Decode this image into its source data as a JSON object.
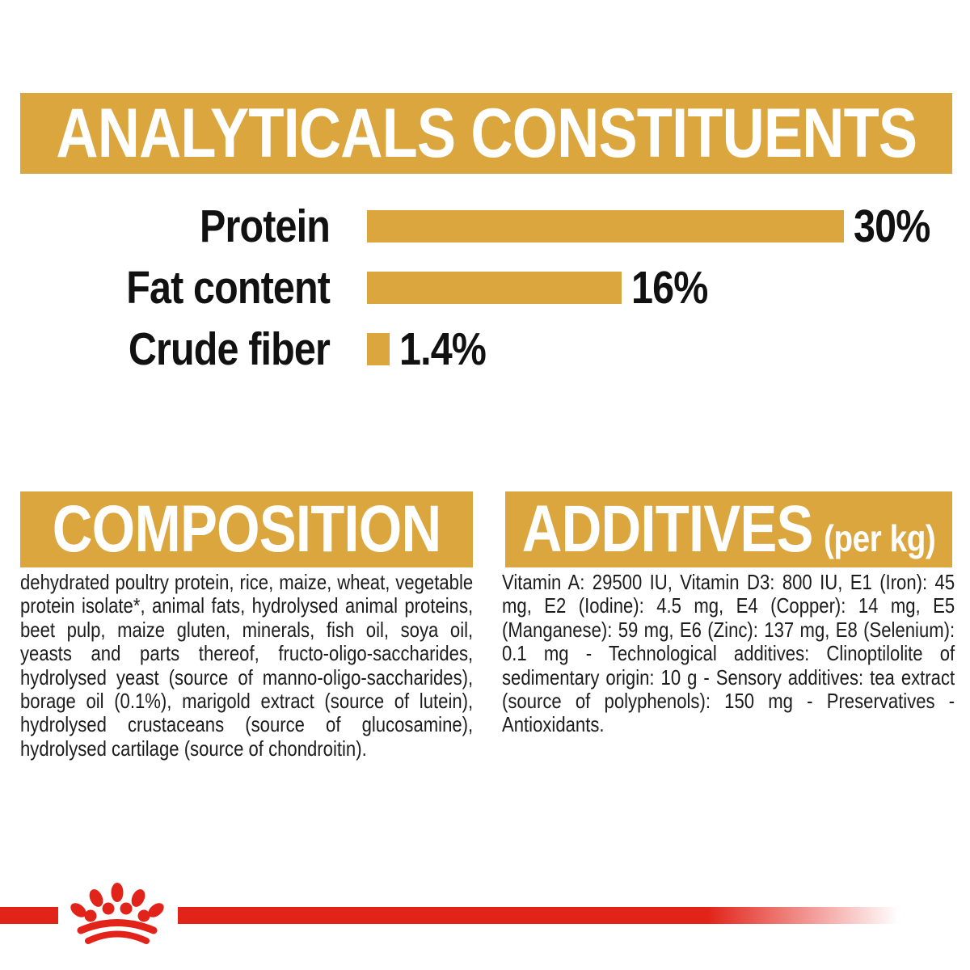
{
  "colors": {
    "gold": "#DBA63E",
    "red": "#E2231A",
    "text": "#1C1C1C",
    "band_text": "#FFFFFF"
  },
  "analyticals": {
    "title": "ANALYTICALS CONSTITUENTS"
  },
  "chart_data": {
    "type": "bar",
    "orientation": "horizontal",
    "title": "ANALYTICALS CONSTITUENTS",
    "categories": [
      "Protein",
      "Fat content",
      "Crude fiber"
    ],
    "values": [
      30,
      16,
      1.4
    ],
    "value_labels": [
      "30%",
      "16%",
      "1.4%"
    ],
    "unit": "%",
    "xlim": [
      0,
      30
    ],
    "bar_color": "#DBA63E",
    "grid": false,
    "legend": false
  },
  "composition": {
    "title": "COMPOSITION",
    "body": "dehydrated poultry protein, rice, maize, wheat, vegetable protein isolate*, animal fats, hydrolysed animal proteins, beet pulp, maize gluten, minerals, fish oil, soya oil, yeasts and parts thereof, fructo-oligo-saccharides, hydrolysed yeast (source of manno-oligo-saccharides), borage oil (0.1%), marigold extract (source of lutein), hydrolysed crustaceans (source of glucosamine), hydrolysed cartilage (source of chondroitin)."
  },
  "additives": {
    "title": "ADDITIVES",
    "suffix": "(per kg)",
    "body": "Vitamin A: 29500 IU, Vitamin D3: 800 IU, E1 (Iron): 45 mg, E2 (Iodine): 4.5 mg, E4 (Copper): 14 mg, E5 (Manganese): 59 mg, E6 (Zinc): 137 mg, E8 (Selenium): 0.1 mg - Technological additives: Clinoptilolite of sedimentary origin: 10 g - Sensory additives: tea extract (source of polyphenols): 150 mg - Preservatives - Antioxidants."
  },
  "footer": {
    "logo": "royal-canin-crown"
  }
}
